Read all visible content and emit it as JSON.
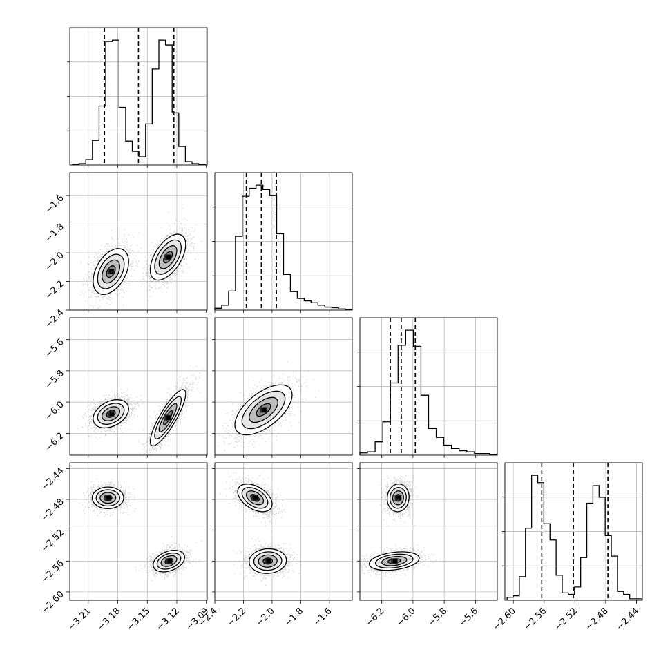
{
  "chart_data": {
    "type": "corner",
    "grid": true,
    "parameters": [
      {
        "ticks": [
          -3.21,
          -3.18,
          -3.15,
          -3.12,
          -3.09
        ],
        "range": [
          -3.2288,
          -3.0891
        ],
        "quantiles": [
          -3.1935,
          -3.159,
          -3.123
        ],
        "hist": {
          "edges_range": [
            -3.226,
            -3.091
          ],
          "counts": [
            1,
            2,
            8,
            36,
            86,
            180,
            182,
            84,
            35,
            20,
            12,
            60,
            140,
            182,
            175,
            76,
            27,
            5,
            2,
            1
          ]
        },
        "modes": [
          {
            "mean": -3.19,
            "sd": 0.009
          },
          {
            "mean": -3.128,
            "sd": 0.009
          }
        ]
      },
      {
        "ticks": [
          -2.4,
          -2.2,
          -2.0,
          -1.8,
          -1.6
        ],
        "range": [
          -2.4,
          -1.44
        ],
        "quantiles": [
          -2.18,
          -2.075,
          -1.97
        ],
        "hist": {
          "edges_range": [
            -2.4,
            -1.44
          ],
          "counts": [
            3,
            8,
            31,
            120,
            185,
            198,
            203,
            196,
            186,
            124,
            58,
            30,
            19,
            15,
            12,
            8,
            5,
            4,
            2,
            1
          ]
        },
        "modes": [
          {
            "mean": -2.12,
            "sd": 0.07
          },
          {
            "mean": -2.03,
            "sd": 0.07
          }
        ]
      },
      {
        "ticks": [
          -6.2,
          -6.0,
          -5.8,
          -5.6
        ],
        "range": [
          -6.34,
          -5.46
        ],
        "quantiles": [
          -6.145,
          -6.075,
          -5.985
        ],
        "hist": {
          "edges_range": [
            -6.34,
            -5.46
          ],
          "counts": [
            4,
            6,
            24,
            60,
            130,
            198,
            225,
            196,
            108,
            48,
            32,
            18,
            12,
            8,
            6,
            3,
            3,
            1
          ]
        },
        "modes": [
          {
            "mean": -6.09,
            "sd": 0.05
          },
          {
            "mean": -6.02,
            "sd": 0.1
          }
        ]
      },
      {
        "ticks": [
          -2.6,
          -2.56,
          -2.52,
          -2.48,
          -2.44
        ],
        "range": [
          -2.6108,
          -2.4325
        ],
        "quantiles": [
          -2.563,
          -2.522,
          -2.4772
        ],
        "hist": {
          "edges_range": [
            -2.608,
            -2.433
          ],
          "counts": [
            4,
            6,
            32,
            98,
            170,
            160,
            104,
            82,
            34,
            10,
            8,
            18,
            58,
            132,
            156,
            140,
            88,
            60,
            12,
            8,
            2,
            2
          ]
        },
        "modes": [
          {
            "mean": -2.56,
            "sd": 0.006
          },
          {
            "mean": -2.478,
            "sd": 0.006
          }
        ]
      }
    ],
    "joint": [
      {
        "i": 1,
        "j": 0,
        "blobs": [
          {
            "cx": -3.187,
            "cy": -2.13,
            "sx": 0.009,
            "sy": 0.08,
            "rho": 0.42
          },
          {
            "cx": -3.129,
            "cy": -2.03,
            "sx": 0.009,
            "sy": 0.08,
            "rho": 0.55
          }
        ]
      },
      {
        "i": 2,
        "j": 0,
        "blobs": [
          {
            "cx": -3.187,
            "cy": -6.075,
            "sx": 0.009,
            "sy": 0.045,
            "rho": 0.35
          },
          {
            "cx": -3.129,
            "cy": -6.1,
            "sx": 0.009,
            "sy": 0.09,
            "rho": 0.85
          }
        ]
      },
      {
        "i": 2,
        "j": 1,
        "blobs": [
          {
            "cx": -2.06,
            "cy": -6.05,
            "sx": 0.1,
            "sy": 0.08,
            "rho": 0.6
          }
        ]
      },
      {
        "i": 3,
        "j": 0,
        "blobs": [
          {
            "cx": -3.19,
            "cy": -2.478,
            "sx": 0.008,
            "sy": 0.007,
            "rho": 0.0
          },
          {
            "cx": -3.128,
            "cy": -2.56,
            "sx": 0.008,
            "sy": 0.007,
            "rho": 0.35
          }
        ]
      },
      {
        "i": 3,
        "j": 1,
        "blobs": [
          {
            "cx": -2.12,
            "cy": -2.478,
            "sx": 0.06,
            "sy": 0.009,
            "rho": -0.45
          },
          {
            "cx": -2.03,
            "cy": -2.56,
            "sx": 0.065,
            "sy": 0.008,
            "rho": 0.05
          }
        ]
      },
      {
        "i": 3,
        "j": 2,
        "blobs": [
          {
            "cx": -6.095,
            "cy": -2.478,
            "sx": 0.035,
            "sy": 0.009,
            "rho": 0.05
          },
          {
            "cx": -6.12,
            "cy": -2.56,
            "sx": 0.08,
            "sy": 0.006,
            "rho": 0.3
          }
        ]
      }
    ],
    "contour_levels_sigma": [
      0.5,
      1.0,
      1.5,
      2.0
    ],
    "colors": {
      "line": "#000000",
      "points": "#7a7a7a",
      "grid": "#b0b0b0",
      "density_light": "#f4f4f4",
      "density_dark": "#000000"
    }
  }
}
